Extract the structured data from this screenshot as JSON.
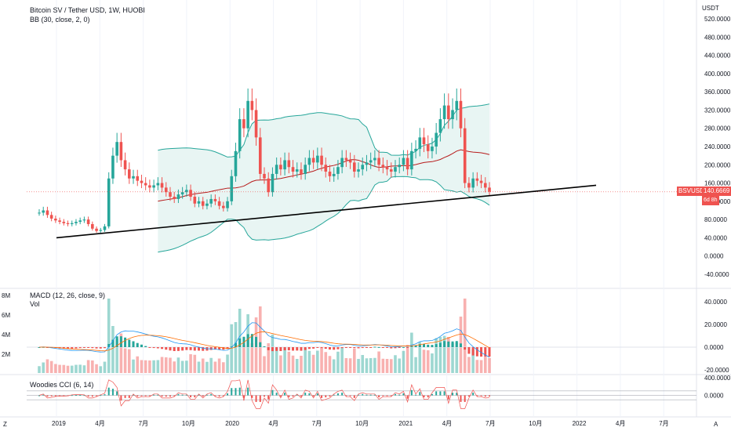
{
  "header": {
    "title": "Bitcoin SV / Tether USD, 1W, HUOBI",
    "bb_label": "BB (30, close, 2, 0)",
    "macd_label": "MACD (12, 26, close, 9)",
    "vol_label": "Vol",
    "cci_label": "Woodies CCI (6, 14)"
  },
  "axis": {
    "price_unit": "USDT",
    "price_ticks": [
      "520.0000",
      "480.0000",
      "440.0000",
      "400.0000",
      "360.0000",
      "320.0000",
      "280.0000",
      "240.0000",
      "200.0000",
      "160.0000",
      "120.0000",
      "80.0000",
      "40.0000",
      "0.0000",
      "-40.0000"
    ],
    "vol_ticks": [
      "8M",
      "6M",
      "4M",
      "2M"
    ],
    "macd_ticks": [
      "40.0000",
      "20.0000",
      "0.0000",
      "-20.0000"
    ],
    "cci_ticks": [
      "400.0000",
      "0.0000"
    ],
    "time_ticks": [
      "2019",
      "4月",
      "7月",
      "10月",
      "2020",
      "4月",
      "7月",
      "10月",
      "2021",
      "4月",
      "7月",
      "10月",
      "2022",
      "4月",
      "7月"
    ],
    "corner_left": "Z",
    "corner_right": "A"
  },
  "last_price": {
    "symbol": "BSVUSDT",
    "value": "140.6669",
    "countdown": "6d 8h"
  },
  "colors": {
    "up": "#26a69a",
    "down": "#ef5350",
    "bb_fill": "#e8f5f3",
    "bb_band": "#26a69a",
    "bb_basis": "#b71c1c",
    "trendline": "#000000"
  },
  "chart_data": {
    "type": "candlestick",
    "x_start": "2018-11",
    "x_end": "2021-06",
    "price_range": [
      -40,
      520
    ],
    "weekly_close_sample": [
      95,
      100,
      90,
      82,
      78,
      75,
      72,
      70,
      72,
      75,
      78,
      80,
      70,
      60,
      55,
      57,
      65,
      170,
      220,
      250,
      210,
      190,
      170,
      175,
      165,
      160,
      155,
      150,
      155,
      160,
      150,
      140,
      130,
      125,
      135,
      140,
      145,
      130,
      115,
      120,
      110,
      115,
      125,
      120,
      110,
      105,
      120,
      175,
      230,
      300,
      280,
      340,
      320,
      260,
      180,
      170,
      140,
      180,
      200,
      190,
      210,
      195,
      185,
      190,
      180,
      200,
      215,
      205,
      220,
      200,
      185,
      175,
      180,
      195,
      215,
      210,
      205,
      185,
      190,
      200,
      205,
      210,
      215,
      200,
      195,
      190,
      185,
      195,
      200,
      215,
      190,
      230,
      235,
      260,
      245,
      230,
      240,
      270,
      300,
      330,
      300,
      320,
      340,
      280,
      160,
      150,
      170,
      165,
      160,
      150,
      141
    ],
    "trendline": {
      "from": {
        "x": "2018-12",
        "y": 40
      },
      "to": {
        "x": "2021-09",
        "y": 155
      }
    },
    "macd_range": [
      -20,
      40
    ],
    "cci_range": [
      -400,
      400
    ]
  }
}
